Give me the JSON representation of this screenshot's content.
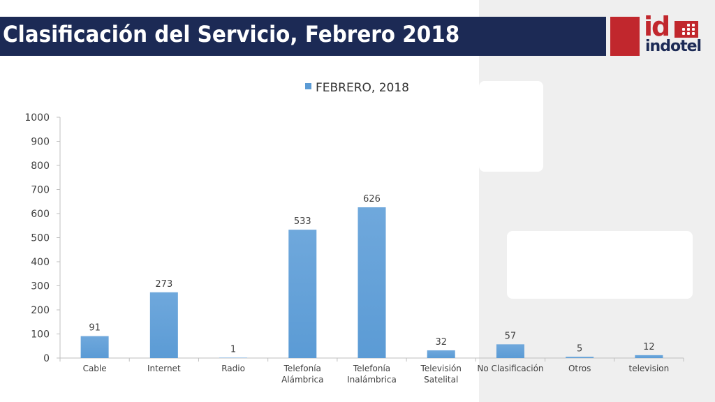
{
  "header": {
    "title": "Clasificación del Servicio, Febrero 2018"
  },
  "logo": {
    "mark": "id",
    "wordmark": "indotel"
  },
  "colors": {
    "title_bar": "#1c2a55",
    "accent": "#c1272d",
    "bar": "#5b9bd5"
  },
  "chart_data": {
    "type": "bar",
    "categories": [
      "Cable",
      "Internet",
      "Radio",
      "Telefonía Alámbrica",
      "Telefonía Inalámbrica",
      "Televisión Satelital",
      "No Clasificación",
      "Otros",
      "television"
    ],
    "series": [
      {
        "name": "FEBRERO, 2018",
        "values": [
          91,
          273,
          1,
          533,
          626,
          32,
          57,
          5,
          12
        ]
      }
    ],
    "ylim": [
      0,
      1000
    ],
    "yticks": [
      0,
      100,
      200,
      300,
      400,
      500,
      600,
      700,
      800,
      900,
      1000
    ],
    "grid": false,
    "legend": "top",
    "data_labels": true
  }
}
